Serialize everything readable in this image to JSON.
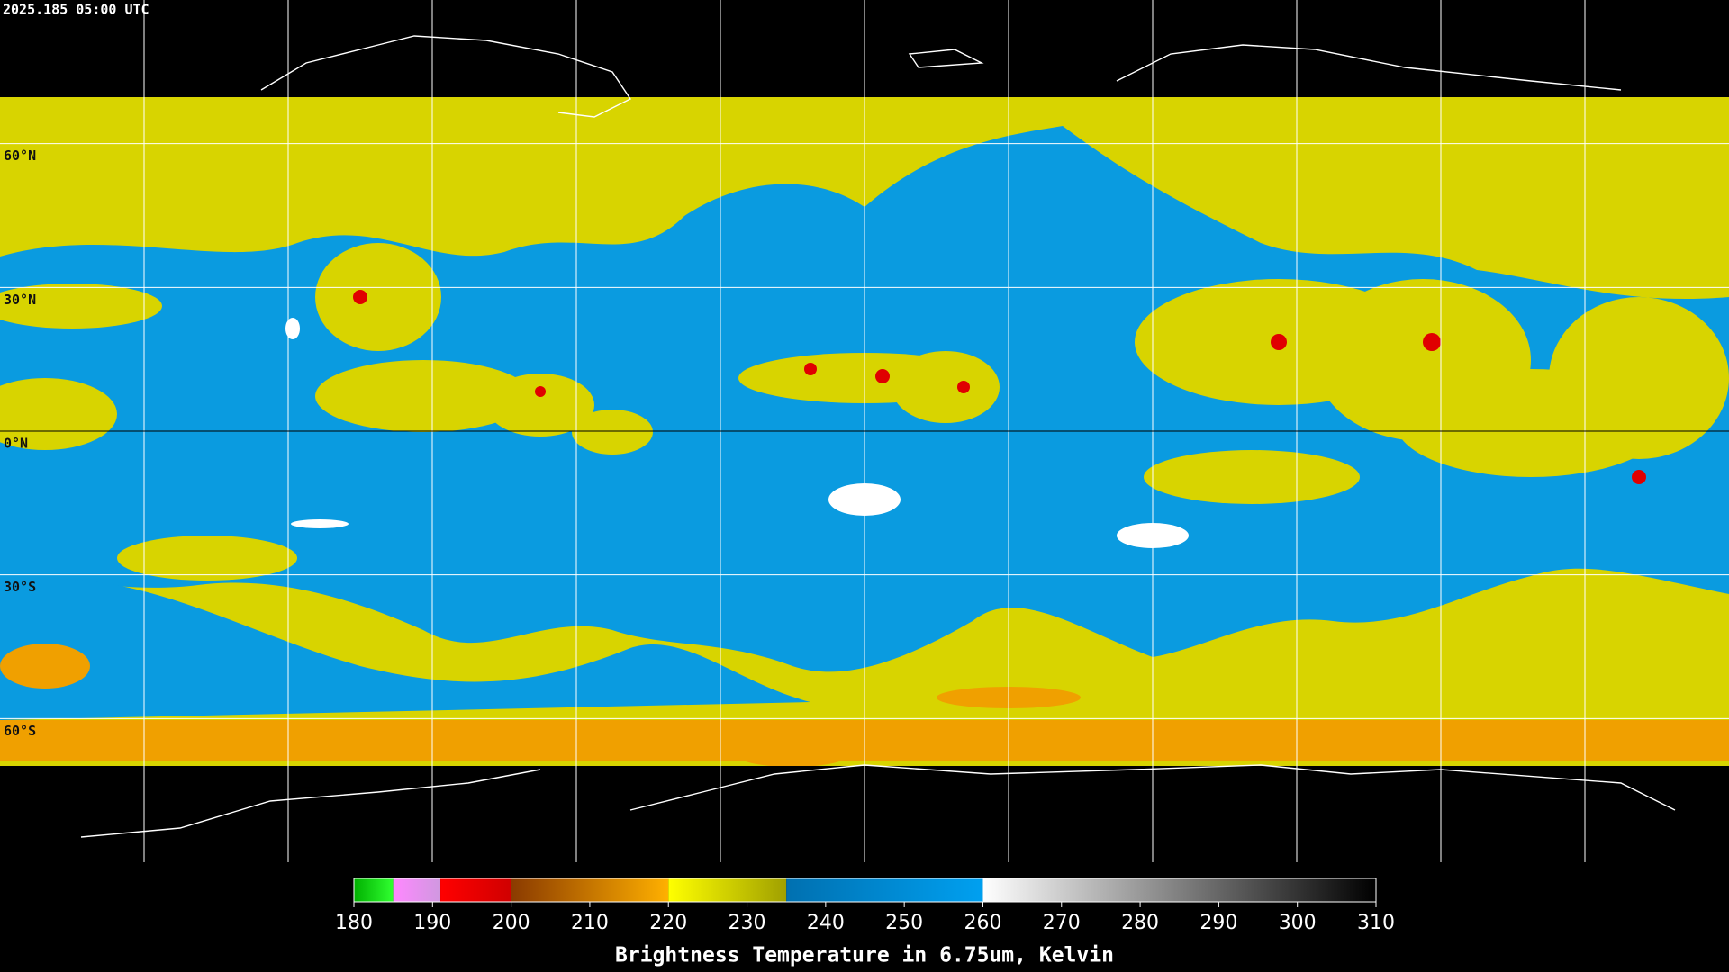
{
  "timestamp": "2025.185 05:00 UTC",
  "map": {
    "lat_lim": [
      90,
      -90
    ],
    "lat_lines": [
      {
        "value": 60,
        "label": "60°N"
      },
      {
        "value": 30,
        "label": "30°N"
      },
      {
        "value": 0,
        "label": "0°N"
      },
      {
        "value": -30,
        "label": "30°S"
      },
      {
        "value": -60,
        "label": "60°S"
      }
    ]
  },
  "colorbar": {
    "title": "Brightness Temperature in 6.75um, Kelvin",
    "lim": [
      180,
      310
    ],
    "ticks": [
      180,
      190,
      200,
      210,
      220,
      230,
      240,
      250,
      260,
      270,
      280,
      290,
      300,
      310
    ],
    "segments": [
      {
        "from": 180,
        "to": 185,
        "colors": [
          "#00b000",
          "#30ff30"
        ]
      },
      {
        "from": 185,
        "to": 191,
        "colors": [
          "#ff88ff",
          "#d098e0"
        ]
      },
      {
        "from": 191,
        "to": 200,
        "colors": [
          "#ff0000",
          "#d00000"
        ]
      },
      {
        "from": 200,
        "to": 220,
        "colors": [
          "#8a3a00",
          "#ffb000"
        ]
      },
      {
        "from": 220,
        "to": 235,
        "colors": [
          "#ffff00",
          "#a0a000"
        ]
      },
      {
        "from": 235,
        "to": 260,
        "colors": [
          "#0070b0",
          "#00a0f0"
        ]
      },
      {
        "from": 260,
        "to": 310,
        "colors": [
          "#ffffff",
          "#000000"
        ]
      }
    ]
  }
}
